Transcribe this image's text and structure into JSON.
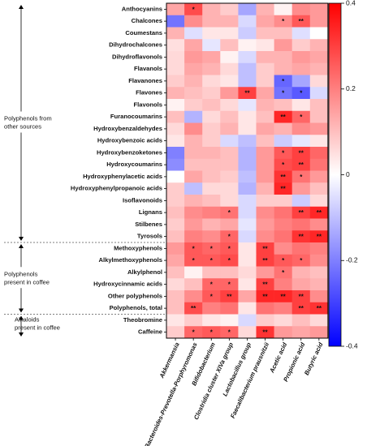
{
  "chart_data": {
    "type": "heatmap",
    "rows": [
      "Anthocyanins",
      "Chalcones",
      "Coumestans",
      "Dihydrochalcones",
      "Dihydroflavonols",
      "Flavanols",
      "Flavanones",
      "Flavones",
      "Flavonols",
      "Furanocoumarins",
      "Hydroxybenzaldehydes",
      "Hydroxybenzoic acids",
      "Hydroxybenzoketones",
      "Hydroxycoumarins",
      "Hydroxyphenylacetic acids",
      "Hydroxyphenylpropanoic acids",
      "Isoflavonoids",
      "Lignans",
      "Stilbenes",
      "Tyrosols",
      "Methoxyphenols",
      "Alkylmethoxyphenols",
      "Alkylphenol",
      "Hydroxycinnamic acids",
      "Other polyphenols",
      "Polyphenols, total",
      "Theobromine",
      "Caffeine"
    ],
    "columns": [
      "Akkermansia",
      "Bacteroides-Prevotella-Porphyromonas",
      "Bifidobacterium",
      "Clostridia cluster XIVa group",
      "Lactobacillus group",
      "Faecalibacterium prausnitzii",
      "Acetic acid",
      "Propionic acid",
      "Butyric acid"
    ],
    "values": [
      [
        0.14,
        0.28,
        0.12,
        0.08,
        -0.14,
        0.12,
        0.02,
        0.18,
        0.16
      ],
      [
        -0.22,
        0.18,
        0.12,
        0.12,
        -0.06,
        0.14,
        0.18,
        0.26,
        0.16
      ],
      [
        0.12,
        -0.05,
        0.04,
        0.04,
        -0.08,
        0.1,
        0.1,
        -0.05,
        0.0
      ],
      [
        0.05,
        0.14,
        -0.04,
        0.1,
        0.02,
        0.04,
        0.16,
        0.08,
        0.12
      ],
      [
        0.06,
        0.16,
        0.14,
        0.02,
        -0.06,
        0.12,
        0.12,
        0.16,
        0.14
      ],
      [
        0.06,
        0.14,
        0.12,
        0.06,
        -0.1,
        0.08,
        0.12,
        0.14,
        0.12
      ],
      [
        0.08,
        0.12,
        0.06,
        0.04,
        -0.1,
        0.08,
        -0.24,
        -0.14,
        0.06
      ],
      [
        0.12,
        0.1,
        0.08,
        0.16,
        0.3,
        0.14,
        -0.22,
        -0.26,
        -0.06
      ],
      [
        0.02,
        0.08,
        0.1,
        0.06,
        -0.04,
        0.12,
        0.1,
        0.04,
        0.1
      ],
      [
        0.1,
        -0.12,
        0.06,
        0.1,
        0.04,
        0.1,
        0.34,
        0.24,
        0.1
      ],
      [
        0.06,
        0.18,
        0.08,
        0.12,
        0.04,
        0.14,
        0.12,
        0.18,
        0.16
      ],
      [
        0.04,
        0.12,
        0.08,
        -0.06,
        -0.1,
        0.1,
        -0.08,
        -0.04,
        0.04
      ],
      [
        -0.2,
        0.12,
        0.12,
        0.1,
        -0.12,
        0.16,
        0.26,
        0.3,
        0.24
      ],
      [
        -0.18,
        0.1,
        0.1,
        0.1,
        -0.12,
        0.16,
        0.28,
        0.3,
        0.22
      ],
      [
        0.0,
        0.14,
        0.1,
        0.08,
        -0.1,
        0.16,
        0.32,
        0.22,
        0.16
      ],
      [
        0.08,
        -0.1,
        0.06,
        0.06,
        -0.12,
        0.12,
        0.34,
        0.16,
        0.1
      ],
      [
        0.08,
        0.12,
        0.1,
        0.06,
        -0.06,
        0.08,
        0.08,
        -0.08,
        0.06
      ],
      [
        0.1,
        0.18,
        0.2,
        0.22,
        -0.06,
        0.18,
        0.22,
        0.3,
        0.34
      ],
      [
        0.08,
        0.16,
        0.12,
        0.14,
        -0.04,
        0.16,
        0.2,
        0.22,
        0.18
      ],
      [
        0.1,
        0.2,
        0.18,
        0.24,
        -0.06,
        0.18,
        0.22,
        0.32,
        0.34
      ],
      [
        0.16,
        0.26,
        0.24,
        0.26,
        0.04,
        0.3,
        0.18,
        0.22,
        0.2
      ],
      [
        0.14,
        0.26,
        0.26,
        0.28,
        0.04,
        0.3,
        0.26,
        0.24,
        0.18
      ],
      [
        0.1,
        0.02,
        0.1,
        0.1,
        0.06,
        0.16,
        0.22,
        0.12,
        0.1
      ],
      [
        0.06,
        0.1,
        0.24,
        0.24,
        0.04,
        0.3,
        0.2,
        0.14,
        0.12
      ],
      [
        0.1,
        0.18,
        0.26,
        0.3,
        0.14,
        0.34,
        0.34,
        0.3,
        0.18
      ],
      [
        0.1,
        0.28,
        0.2,
        0.22,
        0.04,
        0.22,
        0.2,
        0.3,
        0.32
      ],
      [
        0.04,
        0.08,
        0.04,
        0.02,
        -0.06,
        0.08,
        0.06,
        0.1,
        0.06
      ],
      [
        0.08,
        0.24,
        0.26,
        0.24,
        0.06,
        0.32,
        0.16,
        0.14,
        0.16
      ]
    ],
    "significance": [
      [
        "",
        "*",
        "",
        "",
        "",
        "",
        "",
        "",
        ""
      ],
      [
        "",
        "",
        "",
        "",
        "",
        "",
        "*",
        "**",
        ""
      ],
      [
        "",
        "",
        "",
        "",
        "",
        "",
        "",
        "",
        ""
      ],
      [
        "",
        "",
        "",
        "",
        "",
        "",
        "",
        "",
        ""
      ],
      [
        "",
        "",
        "",
        "",
        "",
        "",
        "",
        "",
        ""
      ],
      [
        "",
        "",
        "",
        "",
        "",
        "",
        "",
        "",
        ""
      ],
      [
        "",
        "",
        "",
        "",
        "",
        "",
        "*",
        "",
        ""
      ],
      [
        "",
        "",
        "",
        "",
        "**",
        "",
        "*",
        "*",
        ""
      ],
      [
        "",
        "",
        "",
        "",
        "",
        "",
        "",
        "",
        ""
      ],
      [
        "",
        "",
        "",
        "",
        "",
        "",
        "**",
        "*",
        ""
      ],
      [
        "",
        "",
        "",
        "",
        "",
        "",
        "",
        "",
        ""
      ],
      [
        "",
        "",
        "",
        "",
        "",
        "",
        "",
        "",
        ""
      ],
      [
        "",
        "",
        "",
        "",
        "",
        "",
        "*",
        "**",
        ""
      ],
      [
        "",
        "",
        "",
        "",
        "",
        "",
        "*",
        "**",
        ""
      ],
      [
        "",
        "",
        "",
        "",
        "",
        "",
        "**",
        "*",
        ""
      ],
      [
        "",
        "",
        "",
        "",
        "",
        "",
        "**",
        "",
        ""
      ],
      [
        "",
        "",
        "",
        "",
        "",
        "",
        "",
        "",
        ""
      ],
      [
        "",
        "",
        "",
        "*",
        "",
        "",
        "",
        "**",
        "**"
      ],
      [
        "",
        "",
        "",
        "",
        "",
        "",
        "",
        "",
        ""
      ],
      [
        "",
        "",
        "",
        "*",
        "",
        "",
        "",
        "**",
        "**"
      ],
      [
        "",
        "*",
        "*",
        "*",
        "",
        "**",
        "",
        "",
        ""
      ],
      [
        "",
        "*",
        "*",
        "*",
        "",
        "**",
        "*",
        "*",
        ""
      ],
      [
        "",
        "",
        "",
        "",
        "",
        "",
        "*",
        "",
        ""
      ],
      [
        "",
        "",
        "*",
        "*",
        "",
        "**",
        "",
        "",
        ""
      ],
      [
        "",
        "",
        "*",
        "**",
        "",
        "**",
        "**",
        "**",
        ""
      ],
      [
        "",
        "**",
        "",
        "",
        "",
        "",
        "",
        "**",
        "**"
      ],
      [
        "",
        "",
        "",
        "",
        "",
        "",
        "",
        "",
        ""
      ],
      [
        "",
        "*",
        "*",
        "*",
        "",
        "**",
        "",
        "",
        ""
      ]
    ],
    "groups": [
      {
        "label_lines": [
          "Polyphenols from",
          "other sources"
        ],
        "row_start": 0,
        "row_end": 19
      },
      {
        "label_lines": [
          "Polyphenols",
          "present in coffee"
        ],
        "row_start": 20,
        "row_end": 25
      },
      {
        "label_lines": [
          "Alkaloids",
          "present in coffee"
        ],
        "row_start": 26,
        "row_end": 27
      }
    ],
    "colorbar": {
      "min": -0.4,
      "max": 0.4,
      "ticks": [
        0.4,
        0.2,
        0,
        -0.2,
        -0.4
      ],
      "tick_labels": [
        "0.4",
        "0.2",
        "0",
        "-0.2",
        "-0.4"
      ],
      "colors": {
        "negative": "#0000ff",
        "zero": "#ffffff",
        "positive": "#ff0000"
      }
    }
  }
}
